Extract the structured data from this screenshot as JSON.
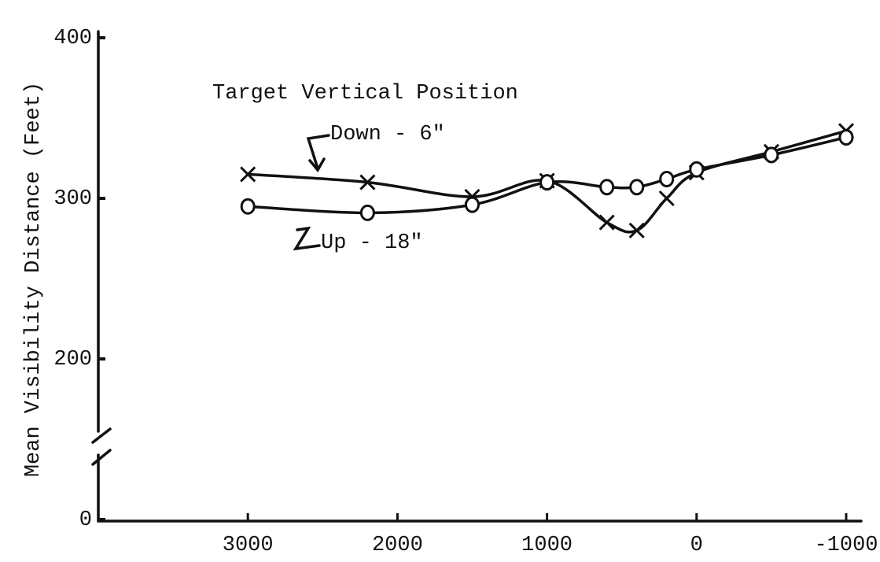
{
  "chart_data": {
    "type": "line",
    "ylabel": "Mean Visibility Distance (Feet)",
    "annotation": "Target Vertical Position",
    "xlim": [
      4000,
      -1100
    ],
    "xticks": [
      3000,
      2000,
      1000,
      0,
      -1000
    ],
    "ylim": [
      0,
      400
    ],
    "yticks": [
      0,
      200,
      300,
      400
    ],
    "y_axis_break": true,
    "grid": false,
    "series": [
      {
        "name": "Down - 6\"",
        "color": "#111111",
        "marker": "x",
        "x": [
          3000,
          2200,
          1500,
          1000,
          600,
          400,
          200,
          0,
          -500,
          -1000
        ],
        "values": [
          315,
          310,
          301,
          311,
          285,
          280,
          300,
          316,
          329,
          342
        ]
      },
      {
        "name": "Up - 18\"",
        "color": "#111111",
        "marker": "o",
        "x": [
          3000,
          2200,
          1500,
          1000,
          600,
          400,
          200,
          0,
          -500,
          -1000
        ],
        "values": [
          295,
          291,
          296,
          310,
          307,
          307,
          312,
          318,
          327,
          338
        ]
      }
    ]
  }
}
